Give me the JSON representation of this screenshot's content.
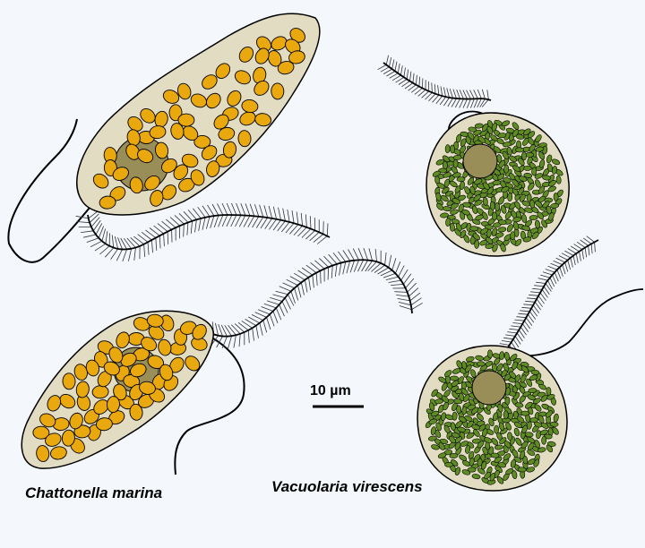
{
  "labels": {
    "chattonella": "Chattonella marina",
    "vacuolaria": "Vacuolaria virescens"
  },
  "scale_bar": {
    "text": "10 µm"
  },
  "colors": {
    "background": "#f4f7fc",
    "cell_body": "#e2dcc2",
    "golden_plastid": "#e9a80d",
    "green_plastid": "#5f8b23",
    "nucleus": "#998e58",
    "outline": "#000000"
  }
}
